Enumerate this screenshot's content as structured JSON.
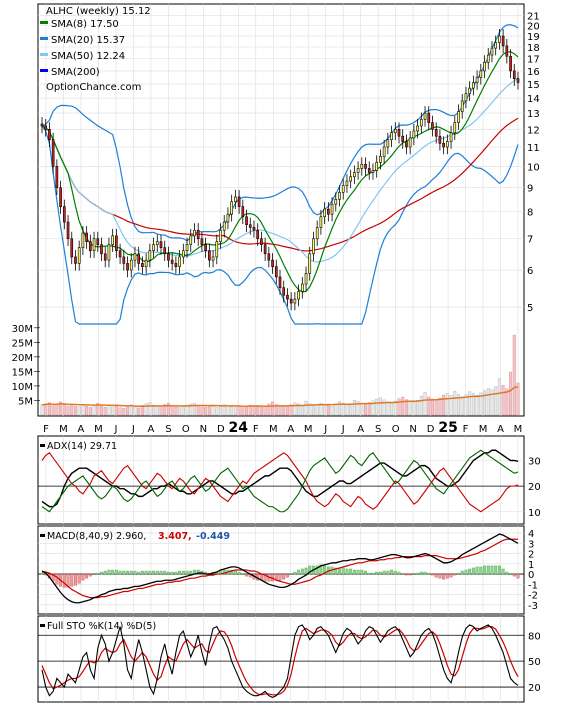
{
  "chart_data": [
    {
      "type": "candlestick",
      "ticker_label": "ALHC (weekly) 15.12",
      "website": "OptionChance.com",
      "legend": [
        {
          "label": "SMA(8) 17.50",
          "color": "#008000"
        },
        {
          "label": "SMA(20) 15.37",
          "color": "#1e7fd6"
        },
        {
          "label": "SMA(50) 12.24",
          "color": "#80c8f0"
        },
        {
          "label": "SMA(200)",
          "color": "#0000ff"
        }
      ],
      "legend_placement": "top-left",
      "ylim": [
        4.4,
        21.6
      ],
      "y_ticks": [
        5,
        6,
        7,
        8,
        9,
        10,
        11,
        12,
        13,
        14,
        15,
        16,
        17,
        18,
        19,
        20,
        21
      ],
      "closes": [
        12.2,
        12.0,
        11.4,
        10.0,
        9.0,
        8.2,
        7.6,
        7.0,
        6.4,
        6.2,
        6.7,
        7.2,
        6.9,
        6.6,
        7.0,
        6.8,
        6.5,
        6.3,
        6.8,
        7.1,
        6.6,
        6.4,
        6.2,
        6.0,
        6.3,
        6.5,
        6.2,
        6.1,
        6.3,
        6.6,
        6.8,
        6.9,
        6.7,
        6.5,
        6.3,
        6.2,
        6.1,
        6.4,
        6.6,
        6.8,
        7.1,
        7.3,
        7.0,
        6.8,
        6.6,
        6.3,
        6.4,
        6.9,
        7.3,
        7.6,
        7.9,
        8.4,
        8.6,
        8.2,
        7.8,
        7.5,
        7.4,
        7.3,
        7.0,
        6.8,
        6.5,
        6.3,
        6.1,
        5.8,
        5.5,
        5.3,
        5.2,
        5.1,
        5.2,
        5.4,
        5.6,
        5.9,
        6.5,
        7.0,
        7.4,
        7.8,
        8.1,
        7.9,
        8.3,
        8.5,
        8.8,
        9.1,
        9.3,
        9.5,
        9.7,
        9.9,
        10.1,
        9.9,
        9.7,
        9.8,
        10.2,
        10.5,
        11.0,
        11.4,
        11.8,
        12.0,
        11.6,
        11.3,
        11.0,
        11.5,
        11.9,
        12.2,
        12.6,
        13.0,
        12.4,
        12.0,
        11.6,
        11.2,
        11.0,
        11.3,
        11.8,
        12.4,
        13.1,
        13.8,
        14.3,
        14.7,
        15.1,
        15.5,
        16.0,
        16.7,
        17.3,
        17.9,
        18.4,
        19.0,
        18.1,
        17.2,
        16.0,
        15.4,
        15.12
      ],
      "sma8_close": 17.5,
      "sma20_close": 15.37,
      "sma50_close": 12.24,
      "x_labels": [
        "F",
        "M",
        "A",
        "M",
        "J",
        "J",
        "A",
        "S",
        "O",
        "N",
        "D",
        "24",
        "F",
        "M",
        "A",
        "M",
        "J",
        "J",
        "A",
        "S",
        "O",
        "N",
        "D",
        "25",
        "F",
        "M",
        "A",
        "M"
      ]
    },
    {
      "type": "bar",
      "volume_ticks": [
        "30M",
        "25M",
        "20M",
        "15M",
        "10M",
        "5M"
      ],
      "ylim": [
        0,
        32
      ],
      "volumes": [
        3.5,
        3.8,
        4.2,
        3.2,
        3.9,
        4.5,
        3.6,
        3.1,
        3.3,
        3.0,
        2.8,
        3.5,
        3.0,
        2.6,
        3.4,
        4.0,
        3.0,
        2.7,
        3.2,
        2.9,
        3.0,
        2.5,
        2.3,
        3.1,
        3.6,
        2.8,
        2.4,
        3.3,
        3.9,
        4.3,
        3.4,
        2.9,
        3.1,
        3.6,
        4.1,
        3.0,
        2.7,
        2.5,
        2.9,
        3.4,
        3.8,
        4.0,
        3.1,
        2.8,
        2.6,
        3.3,
        3.0,
        2.7,
        2.9,
        3.5,
        3.2,
        2.8,
        3.0,
        2.9,
        2.6,
        3.1,
        3.4,
        3.0,
        2.8,
        2.7,
        3.2,
        3.8,
        4.5,
        3.6,
        3.3,
        2.9,
        3.1,
        3.5,
        4.2,
        3.8,
        3.2,
        4.8,
        3.9,
        3.4,
        3.6,
        4.1,
        3.7,
        3.3,
        3.0,
        3.8,
        4.6,
        4.1,
        3.5,
        3.9,
        5.1,
        4.7,
        4.0,
        3.8,
        4.3,
        4.9,
        5.5,
        6.0,
        5.2,
        4.6,
        4.1,
        4.8,
        5.6,
        6.2,
        5.3,
        4.7,
        4.4,
        5.1,
        6.5,
        7.8,
        6.2,
        5.5,
        5.0,
        5.8,
        6.9,
        7.4,
        6.8,
        8.2,
        7.1,
        6.3,
        7.0,
        8.0,
        7.4,
        6.8,
        7.6,
        8.4,
        9.1,
        8.7,
        9.8,
        12.5,
        10.2,
        9.0,
        14.8,
        27.5,
        11.0
      ],
      "vol_sma_last": 5.4
    },
    {
      "type": "line",
      "label": "ADX(14) 29.71",
      "ylim": [
        6,
        38
      ],
      "y_ticks": [
        10,
        20,
        30
      ],
      "hlines": [
        20
      ],
      "series": [
        {
          "color": "#000000",
          "values": [
            14,
            13,
            12,
            12,
            13,
            16,
            20,
            23,
            25,
            26,
            27,
            27,
            27,
            26,
            25,
            24,
            23,
            22,
            21,
            20,
            20,
            19,
            19,
            18,
            17,
            17,
            16,
            16,
            17,
            18,
            19,
            19,
            20,
            20,
            21,
            20,
            19,
            18,
            18,
            17,
            17,
            18,
            19,
            20,
            21,
            22,
            22,
            21,
            20,
            19,
            18,
            17,
            17,
            18,
            18,
            19,
            20,
            21,
            22,
            23,
            24,
            24,
            25,
            26,
            27,
            27,
            27,
            26,
            24,
            22,
            20,
            18,
            17,
            16,
            16,
            17,
            18,
            19,
            20,
            21,
            22,
            22,
            21,
            21,
            22,
            23,
            24,
            25,
            26,
            27,
            28,
            29,
            29,
            28,
            27,
            26,
            25,
            24,
            24,
            25,
            26,
            27,
            28,
            28,
            27,
            25,
            23,
            22,
            21,
            20,
            20,
            21,
            22,
            24,
            26,
            28,
            30,
            31,
            32,
            33,
            33,
            34,
            34,
            33,
            32,
            31,
            30,
            30,
            29.7
          ]
        },
        {
          "color": "#cc0000",
          "values": [
            30,
            32,
            33,
            31,
            29,
            27,
            25,
            23,
            21,
            20,
            18,
            17,
            19,
            21,
            24,
            25,
            26,
            24,
            22,
            21,
            23,
            25,
            27,
            28,
            26,
            24,
            22,
            20,
            19,
            21,
            23,
            25,
            24,
            22,
            20,
            19,
            21,
            23,
            22,
            20,
            18,
            17,
            19,
            21,
            23,
            22,
            20,
            18,
            16,
            15,
            14,
            16,
            18,
            20,
            22,
            21,
            23,
            25,
            26,
            27,
            28,
            29,
            30,
            31,
            32,
            33,
            32,
            30,
            28,
            26,
            24,
            22,
            19,
            16,
            14,
            13,
            12,
            13,
            15,
            17,
            16,
            14,
            13,
            12,
            14,
            16,
            15,
            13,
            12,
            11,
            12,
            14,
            16,
            18,
            20,
            22,
            21,
            19,
            17,
            15,
            13,
            14,
            16,
            18,
            20,
            22,
            24,
            26,
            27,
            25,
            23,
            21,
            19,
            17,
            15,
            13,
            12,
            11,
            10,
            11,
            12,
            13,
            14,
            15,
            17,
            19,
            20,
            20,
            20.5
          ]
        },
        {
          "color": "#006600",
          "values": [
            12,
            11,
            10,
            12,
            14,
            16,
            18,
            20,
            21,
            22,
            23,
            24,
            22,
            20,
            18,
            16,
            15,
            16,
            18,
            20,
            19,
            17,
            15,
            14,
            15,
            17,
            19,
            21,
            22,
            20,
            18,
            16,
            17,
            19,
            21,
            22,
            20,
            18,
            19,
            21,
            23,
            24,
            22,
            20,
            18,
            19,
            21,
            23,
            25,
            26,
            27,
            25,
            23,
            21,
            19,
            20,
            18,
            16,
            15,
            14,
            13,
            12,
            12,
            11,
            10,
            10,
            11,
            13,
            15,
            17,
            20,
            23,
            26,
            28,
            29,
            30,
            31,
            29,
            27,
            25,
            26,
            28,
            30,
            32,
            31,
            29,
            28,
            30,
            32,
            33,
            31,
            29,
            27,
            25,
            23,
            21,
            22,
            24,
            26,
            28,
            30,
            29,
            27,
            25,
            23,
            21,
            19,
            18,
            17,
            19,
            21,
            23,
            25,
            27,
            29,
            31,
            32,
            33,
            34,
            33,
            32,
            31,
            30,
            29,
            28,
            27,
            26,
            25,
            25.5
          ]
        }
      ]
    },
    {
      "type": "line",
      "label": "MACD(8,40,9) 2.960,",
      "macd_value": "3.407,",
      "hist_value": "-0.449",
      "ylim": [
        -3.7,
        4.3
      ],
      "y_ticks": [
        4,
        3,
        2,
        1,
        0,
        -1,
        -2,
        -3
      ],
      "macd": [
        0.3,
        0.1,
        -0.3,
        -0.8,
        -1.3,
        -1.8,
        -2.2,
        -2.5,
        -2.7,
        -2.8,
        -2.8,
        -2.7,
        -2.6,
        -2.5,
        -2.3,
        -2.2,
        -2.0,
        -1.9,
        -1.7,
        -1.6,
        -1.5,
        -1.5,
        -1.4,
        -1.4,
        -1.3,
        -1.2,
        -1.2,
        -1.1,
        -1.0,
        -0.9,
        -0.8,
        -0.7,
        -0.7,
        -0.6,
        -0.6,
        -0.6,
        -0.5,
        -0.4,
        -0.3,
        -0.2,
        -0.1,
        0.0,
        0.1,
        0.1,
        0.0,
        0.0,
        0.1,
        0.2,
        0.4,
        0.5,
        0.6,
        0.7,
        0.7,
        0.6,
        0.4,
        0.2,
        0.0,
        -0.2,
        -0.4,
        -0.6,
        -0.8,
        -1.0,
        -1.1,
        -1.2,
        -1.3,
        -1.3,
        -1.2,
        -1.0,
        -0.8,
        -0.5,
        -0.3,
        -0.1,
        0.2,
        0.4,
        0.6,
        0.8,
        0.9,
        1.0,
        1.1,
        1.1,
        1.2,
        1.3,
        1.3,
        1.4,
        1.4,
        1.5,
        1.5,
        1.5,
        1.4,
        1.4,
        1.5,
        1.6,
        1.7,
        1.8,
        1.9,
        1.9,
        1.8,
        1.7,
        1.6,
        1.6,
        1.7,
        1.8,
        1.9,
        2.0,
        1.9,
        1.7,
        1.5,
        1.3,
        1.1,
        1.1,
        1.2,
        1.4,
        1.6,
        1.9,
        2.1,
        2.3,
        2.5,
        2.7,
        2.9,
        3.1,
        3.3,
        3.5,
        3.7,
        3.9,
        3.8,
        3.6,
        3.4,
        3.2,
        3.0
      ],
      "signal": [
        0.2,
        0.2,
        0.1,
        -0.1,
        -0.3,
        -0.6,
        -0.9,
        -1.2,
        -1.5,
        -1.7,
        -1.9,
        -2.1,
        -2.2,
        -2.3,
        -2.3,
        -2.3,
        -2.2,
        -2.2,
        -2.1,
        -2.0,
        -1.9,
        -1.8,
        -1.7,
        -1.7,
        -1.6,
        -1.5,
        -1.4,
        -1.4,
        -1.3,
        -1.2,
        -1.1,
        -1.0,
        -1.0,
        -0.9,
        -0.8,
        -0.8,
        -0.7,
        -0.7,
        -0.6,
        -0.5,
        -0.4,
        -0.4,
        -0.3,
        -0.2,
        -0.2,
        -0.1,
        -0.1,
        0.0,
        0.0,
        0.1,
        0.2,
        0.3,
        0.4,
        0.4,
        0.4,
        0.4,
        0.3,
        0.3,
        0.2,
        0.0,
        -0.1,
        -0.3,
        -0.4,
        -0.6,
        -0.7,
        -0.8,
        -0.9,
        -1.0,
        -1.0,
        -0.9,
        -0.8,
        -0.7,
        -0.6,
        -0.4,
        -0.2,
        -0.1,
        0.1,
        0.3,
        0.4,
        0.5,
        0.6,
        0.7,
        0.8,
        0.9,
        1.0,
        1.1,
        1.1,
        1.2,
        1.3,
        1.3,
        1.3,
        1.4,
        1.4,
        1.5,
        1.5,
        1.6,
        1.6,
        1.7,
        1.7,
        1.7,
        1.7,
        1.7,
        1.7,
        1.8,
        1.8,
        1.8,
        1.8,
        1.7,
        1.6,
        1.5,
        1.5,
        1.5,
        1.5,
        1.6,
        1.7,
        1.8,
        1.9,
        2.0,
        2.2,
        2.3,
        2.5,
        2.7,
        2.9,
        3.1,
        3.3,
        3.4,
        3.4,
        3.4,
        3.4
      ],
      "colors": {
        "macd": "#000000",
        "signal": "#cc0000",
        "hist_pos": "#3a9a3a",
        "hist_neg": "#cc3333"
      }
    },
    {
      "type": "line",
      "label": "Full STO %K(14) %D(5)",
      "ylim": [
        5,
        100
      ],
      "y_ticks": [
        80,
        50,
        20
      ],
      "hlines": [
        80,
        50,
        20
      ],
      "k": [
        40,
        20,
        10,
        15,
        30,
        25,
        20,
        35,
        30,
        25,
        40,
        55,
        60,
        40,
        30,
        65,
        80,
        70,
        50,
        60,
        75,
        90,
        70,
        40,
        30,
        55,
        75,
        60,
        40,
        20,
        12,
        30,
        55,
        70,
        50,
        35,
        60,
        80,
        85,
        70,
        55,
        65,
        80,
        60,
        45,
        70,
        88,
        90,
        82,
        75,
        65,
        50,
        40,
        30,
        20,
        15,
        12,
        10,
        10,
        12,
        15,
        10,
        8,
        10,
        15,
        20,
        30,
        55,
        80,
        90,
        92,
        85,
        75,
        80,
        88,
        90,
        85,
        80,
        70,
        60,
        70,
        82,
        88,
        85,
        78,
        70,
        75,
        85,
        90,
        88,
        80,
        72,
        78,
        85,
        88,
        90,
        85,
        75,
        65,
        55,
        60,
        70,
        80,
        85,
        88,
        82,
        70,
        55,
        40,
        30,
        25,
        40,
        60,
        78,
        88,
        92,
        90,
        85,
        88,
        90,
        92,
        88,
        80,
        70,
        60,
        45,
        30,
        25,
        22
      ],
      "d": [
        45,
        35,
        25,
        18,
        20,
        22,
        25,
        28,
        30,
        30,
        32,
        38,
        45,
        50,
        48,
        50,
        60,
        65,
        62,
        60,
        62,
        70,
        75,
        65,
        55,
        50,
        55,
        60,
        55,
        45,
        35,
        28,
        32,
        45,
        55,
        52,
        50,
        60,
        70,
        75,
        70,
        65,
        68,
        70,
        62,
        60,
        70,
        80,
        85,
        84,
        78,
        68,
        55,
        45,
        35,
        26,
        20,
        15,
        12,
        11,
        12,
        12,
        11,
        11,
        12,
        15,
        22,
        35,
        55,
        72,
        85,
        88,
        85,
        82,
        84,
        86,
        86,
        84,
        80,
        72,
        68,
        72,
        78,
        82,
        82,
        78,
        76,
        78,
        82,
        86,
        85,
        80,
        78,
        80,
        83,
        86,
        87,
        82,
        75,
        66,
        62,
        64,
        70,
        76,
        82,
        84,
        80,
        70,
        58,
        45,
        35,
        33,
        40,
        55,
        70,
        82,
        88,
        88,
        87,
        88,
        90,
        90,
        87,
        80,
        72,
        62,
        50,
        40,
        32
      ],
      "colors": {
        "k": "#000000",
        "d": "#cc0000"
      }
    }
  ]
}
